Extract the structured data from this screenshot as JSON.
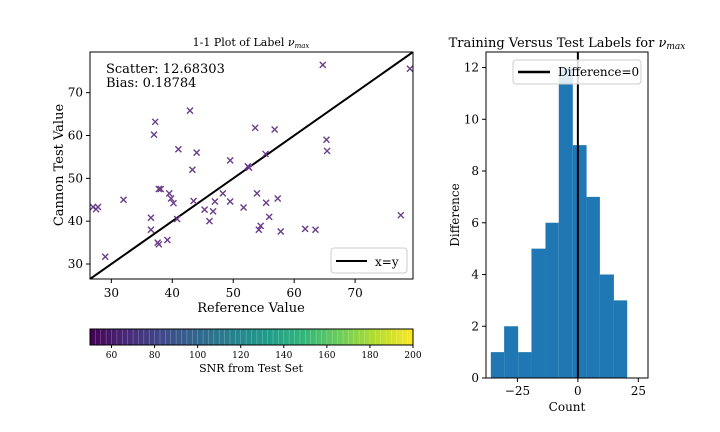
{
  "chart_data": [
    {
      "type": "scatter",
      "title": "1-1 Plot of Label ν_max",
      "title_main": "1-1 Plot of Label ",
      "title_sym": "ν",
      "title_sub": "max",
      "xlabel": "Reference Value",
      "ylabel": "Cannon Test Value",
      "xlim": [
        26.5,
        79.5
      ],
      "ylim": [
        26.5,
        79.5
      ],
      "xticks": [
        30,
        40,
        50,
        60,
        70
      ],
      "yticks": [
        30,
        40,
        50,
        60,
        70
      ],
      "annotations": [
        "Scatter: 12.68303",
        "Bias: 0.18784"
      ],
      "legend": {
        "label": "x=y",
        "position": "lower right"
      },
      "marker": "x",
      "marker_color": "#6a3d8a",
      "line_color": "#000000",
      "points": [
        {
          "x": 27,
          "y": 43.3
        },
        {
          "x": 27.5,
          "y": 42.8
        },
        {
          "x": 27.8,
          "y": 43.3
        },
        {
          "x": 29,
          "y": 31.7
        },
        {
          "x": 32,
          "y": 45
        },
        {
          "x": 36.5,
          "y": 40.8
        },
        {
          "x": 36.5,
          "y": 38
        },
        {
          "x": 37,
          "y": 60.2
        },
        {
          "x": 37.2,
          "y": 63.2
        },
        {
          "x": 37.8,
          "y": 47.5
        },
        {
          "x": 38.1,
          "y": 47.5
        },
        {
          "x": 37.6,
          "y": 35
        },
        {
          "x": 37.8,
          "y": 34.6
        },
        {
          "x": 39.2,
          "y": 35.6
        },
        {
          "x": 39.5,
          "y": 46.5
        },
        {
          "x": 39.8,
          "y": 45.3
        },
        {
          "x": 40.2,
          "y": 44.2
        },
        {
          "x": 40.8,
          "y": 40.5
        },
        {
          "x": 41,
          "y": 56.8
        },
        {
          "x": 42.9,
          "y": 65.8
        },
        {
          "x": 43.3,
          "y": 52
        },
        {
          "x": 43.5,
          "y": 44.7
        },
        {
          "x": 44,
          "y": 56
        },
        {
          "x": 45.3,
          "y": 42.7
        },
        {
          "x": 46.1,
          "y": 40
        },
        {
          "x": 46.7,
          "y": 42.3
        },
        {
          "x": 47,
          "y": 44.6
        },
        {
          "x": 48.3,
          "y": 46.5
        },
        {
          "x": 49.5,
          "y": 54.2
        },
        {
          "x": 49.5,
          "y": 44.6
        },
        {
          "x": 51.7,
          "y": 43.2
        },
        {
          "x": 52.4,
          "y": 52.8
        },
        {
          "x": 52.6,
          "y": 52.5
        },
        {
          "x": 53.6,
          "y": 61.8
        },
        {
          "x": 53.9,
          "y": 46.5
        },
        {
          "x": 54.2,
          "y": 38
        },
        {
          "x": 54.5,
          "y": 38.9
        },
        {
          "x": 55.3,
          "y": 55.7
        },
        {
          "x": 55.4,
          "y": 44.3
        },
        {
          "x": 55.9,
          "y": 41
        },
        {
          "x": 56.8,
          "y": 61.4
        },
        {
          "x": 57.3,
          "y": 45.3
        },
        {
          "x": 57.8,
          "y": 37.6
        },
        {
          "x": 61.8,
          "y": 38.2
        },
        {
          "x": 63.5,
          "y": 38
        },
        {
          "x": 64.7,
          "y": 76.5
        },
        {
          "x": 65.3,
          "y": 59
        },
        {
          "x": 65.4,
          "y": 56.4
        },
        {
          "x": 77.5,
          "y": 41.4
        },
        {
          "x": 79,
          "y": 75.6
        }
      ]
    },
    {
      "type": "bar",
      "title": "Training Versus Test Labels for ν_max",
      "title_main": "Training Versus Test Labels for ",
      "title_sym": "ν",
      "title_sub": "max",
      "xlabel": "Count",
      "ylabel": "Difference",
      "xlim": [
        -38,
        29
      ],
      "ylim": [
        0,
        12.6
      ],
      "xticks": [
        -25,
        0,
        25
      ],
      "yticks": [
        0,
        2,
        4,
        6,
        8,
        10,
        12
      ],
      "legend": {
        "label": "Difference=0",
        "position": "upper right"
      },
      "bar_color": "#1f77b4",
      "bins": [
        {
          "left": -36,
          "right": -30.5,
          "value": 1
        },
        {
          "left": -30.5,
          "right": -24.7,
          "value": 2
        },
        {
          "left": -24.7,
          "right": -19.2,
          "value": 1
        },
        {
          "left": -19.2,
          "right": -13.4,
          "value": 5
        },
        {
          "left": -13.4,
          "right": -7.9,
          "value": 6
        },
        {
          "left": -7.9,
          "right": -2.1,
          "value": 12
        },
        {
          "left": -2.1,
          "right": 3.6,
          "value": 9
        },
        {
          "left": 3.6,
          "right": 9.1,
          "value": 7
        },
        {
          "left": 9.1,
          "right": 14.9,
          "value": 4
        },
        {
          "left": 14.9,
          "right": 20.4,
          "value": 3
        }
      ],
      "vline_x": 0
    }
  ],
  "colorbar": {
    "label": "SNR from Test Set",
    "ticks": [
      60,
      80,
      100,
      120,
      140,
      160,
      180,
      200
    ],
    "range": [
      50,
      200
    ],
    "colormap": [
      "#440154",
      "#482878",
      "#3e4989",
      "#31688e",
      "#26828e",
      "#1f9e89",
      "#35b779",
      "#6ece58",
      "#b5de2b",
      "#fde725"
    ]
  }
}
